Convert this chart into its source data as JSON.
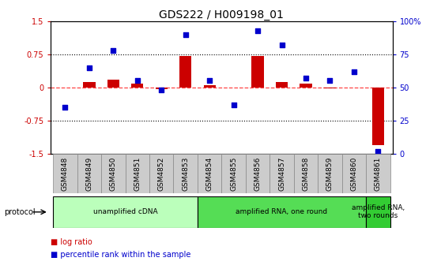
{
  "title": "GDS222 / H009198_01",
  "samples": [
    "GSM4848",
    "GSM4849",
    "GSM4850",
    "GSM4851",
    "GSM4852",
    "GSM4853",
    "GSM4854",
    "GSM4855",
    "GSM4856",
    "GSM4857",
    "GSM4858",
    "GSM4859",
    "GSM4860",
    "GSM4861"
  ],
  "log_ratio": [
    0.0,
    0.12,
    0.18,
    0.08,
    -0.03,
    0.72,
    0.06,
    0.0,
    0.72,
    0.13,
    0.09,
    -0.02,
    -0.01,
    -1.3
  ],
  "percentile": [
    35,
    65,
    78,
    55,
    48,
    90,
    55,
    37,
    93,
    82,
    57,
    55,
    62,
    2
  ],
  "ylim_left": [
    -1.5,
    1.5
  ],
  "ylim_right": [
    0,
    100
  ],
  "yticks_left": [
    -1.5,
    -0.75,
    0,
    0.75,
    1.5
  ],
  "ytick_labels_left": [
    "-1.5",
    "-0.75",
    "0",
    "0.75",
    "1.5"
  ],
  "yticks_right": [
    0,
    25,
    50,
    75,
    100
  ],
  "ytick_labels_right": [
    "0",
    "25",
    "50",
    "75",
    "100%"
  ],
  "dotted_lines": [
    -0.75,
    0.75
  ],
  "bar_color": "#cc0000",
  "scatter_color": "#0000cc",
  "zero_line_color": "#ff4444",
  "protocol_groups": [
    {
      "label": "unamplified cDNA",
      "indices": [
        0,
        1,
        2,
        3,
        4,
        5
      ],
      "color": "#bbffbb"
    },
    {
      "label": "amplified RNA, one round",
      "indices": [
        6,
        7,
        8,
        9,
        10,
        11,
        12
      ],
      "color": "#55dd55"
    },
    {
      "label": "amplified RNA,\ntwo rounds",
      "indices": [
        13
      ],
      "color": "#33cc33"
    }
  ],
  "protocol_label": "protocol",
  "legend_items": [
    {
      "label": "log ratio",
      "color": "#cc0000"
    },
    {
      "label": "percentile rank within the sample",
      "color": "#0000cc"
    }
  ],
  "sample_box_color": "#cccccc",
  "sample_box_edge": "#888888"
}
